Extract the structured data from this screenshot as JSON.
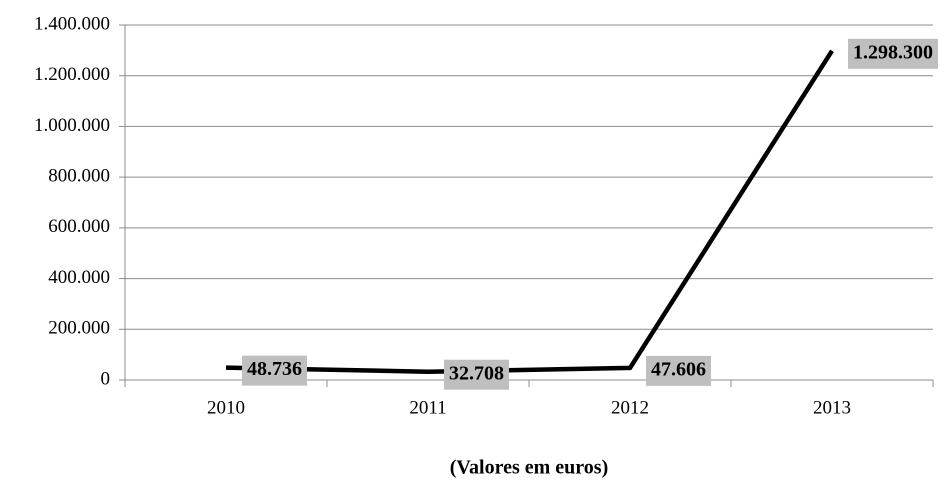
{
  "chart_data": {
    "type": "line",
    "x_label": "(Valores em euros)",
    "categories": [
      "2010",
      "2011",
      "2012",
      "2013"
    ],
    "series": [
      {
        "color": "#000000",
        "values": [
          48736,
          32708,
          47606,
          1298300
        ],
        "value_labels": [
          "48.736",
          "32.708",
          "47.606",
          "1.298.300"
        ]
      }
    ],
    "ylim": [
      0,
      1400000
    ],
    "yticks": [
      0,
      {
        "value": 200000,
        "label": "200.000"
      },
      {
        "value": 400000,
        "label": "400.000"
      },
      {
        "value": 600000,
        "label": "600.000"
      },
      {
        "value": 800000,
        "label": "800.000"
      },
      {
        "value": 1000000,
        "label": "1.000.000"
      },
      {
        "value": 1200000,
        "label": "1.200.000"
      },
      {
        "value": 1400000,
        "label": "1.400.000"
      }
    ],
    "grid": true
  }
}
